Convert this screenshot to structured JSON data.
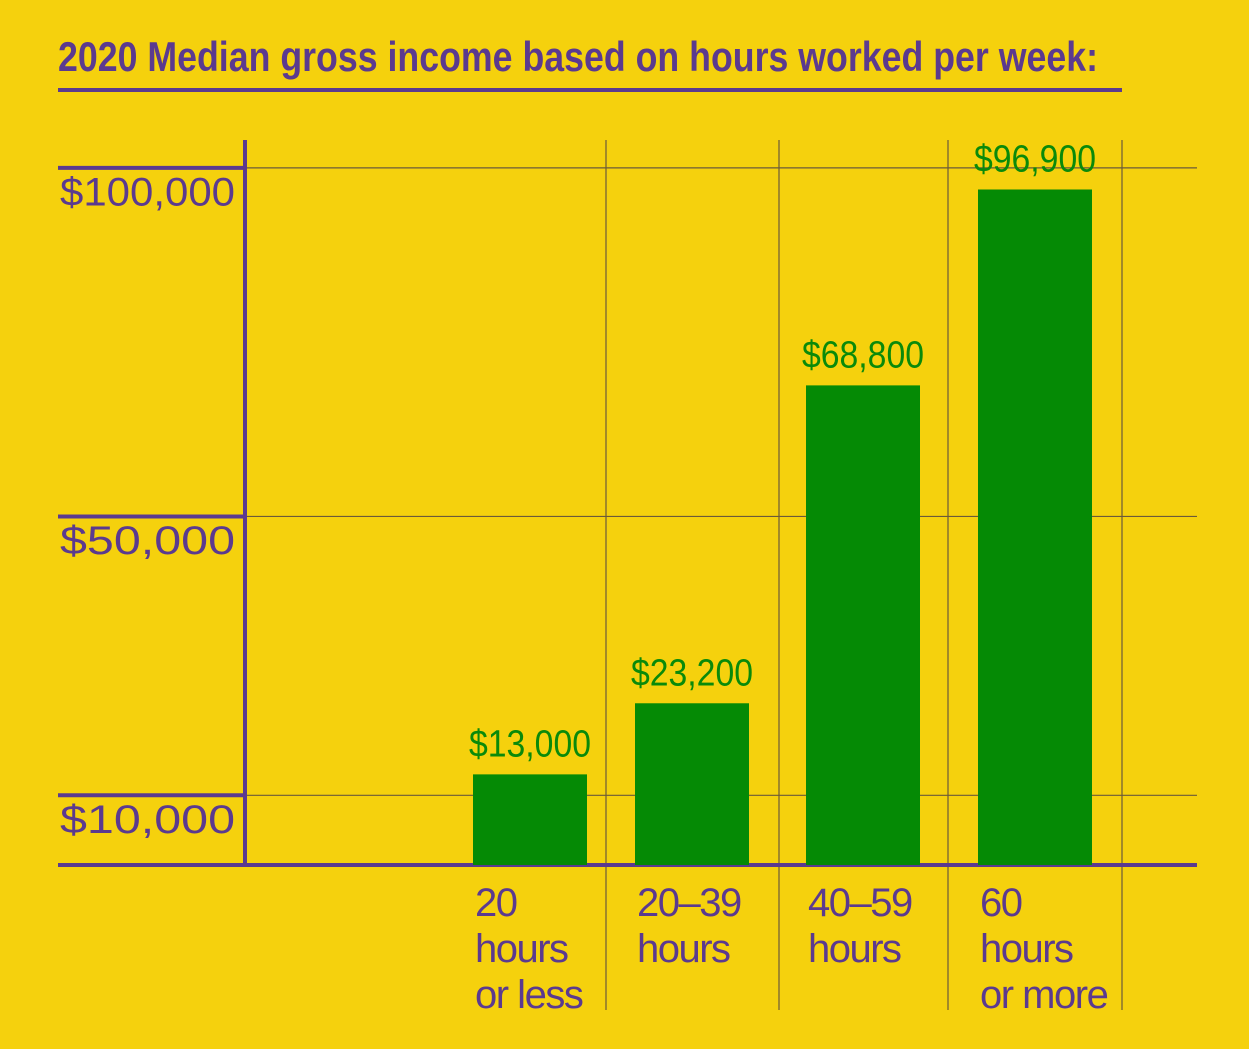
{
  "chart_data": {
    "type": "bar",
    "title": "2020 Median gross income based on hours worked per week:",
    "categories": [
      "20\nhours\nor less",
      "20–39\nhours",
      "40–59\nhours",
      "60\nhours\nor more"
    ],
    "values": [
      13000,
      23200,
      68800,
      96900
    ],
    "value_labels": [
      "$13,000",
      "$23,200",
      "$68,800",
      "$96,900"
    ],
    "color": "#058a05",
    "ylim": [
      0,
      104000
    ],
    "yticks": [
      {
        "value": 10000,
        "label": "$10,000"
      },
      {
        "value": 50000,
        "label": "$50,000"
      },
      {
        "value": 100000,
        "label": "$100,000"
      }
    ],
    "grid": true
  }
}
